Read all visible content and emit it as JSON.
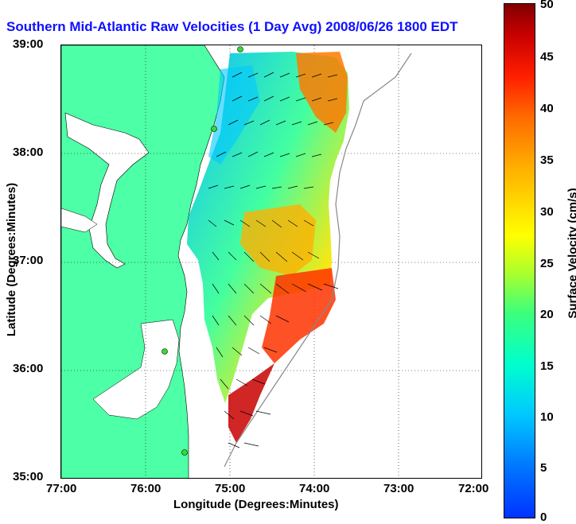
{
  "title": "Southern Mid-Atlantic Raw Velocities (1 Day Avg) 2008/06/26 1800 EDT",
  "axes": {
    "xlabel": "Longitude (Degrees:Minutes)",
    "ylabel": "Latitude (Degrees:Minutes)",
    "xticks": [
      "77:00",
      "76:00",
      "75:00",
      "74:00",
      "73:00",
      "72:00"
    ],
    "yticks": [
      "39:00",
      "38:00",
      "37:00",
      "36:00",
      "35:00"
    ],
    "xlim_deg_west": [
      77,
      72
    ],
    "ylim_deg_north": [
      35,
      39
    ],
    "grid": "dotted"
  },
  "colorbar": {
    "label": "Surface Velocity (cm/s)",
    "ticks": [
      "50",
      "45",
      "40",
      "35",
      "30",
      "25",
      "20",
      "15",
      "10",
      "5",
      "0"
    ],
    "range_cm_s": [
      0,
      50
    ],
    "colormap": "jet"
  },
  "colors": {
    "land": "#4dffa6",
    "water": "#ffffff",
    "title": "#1010ff",
    "stations": "#33dd33"
  }
}
